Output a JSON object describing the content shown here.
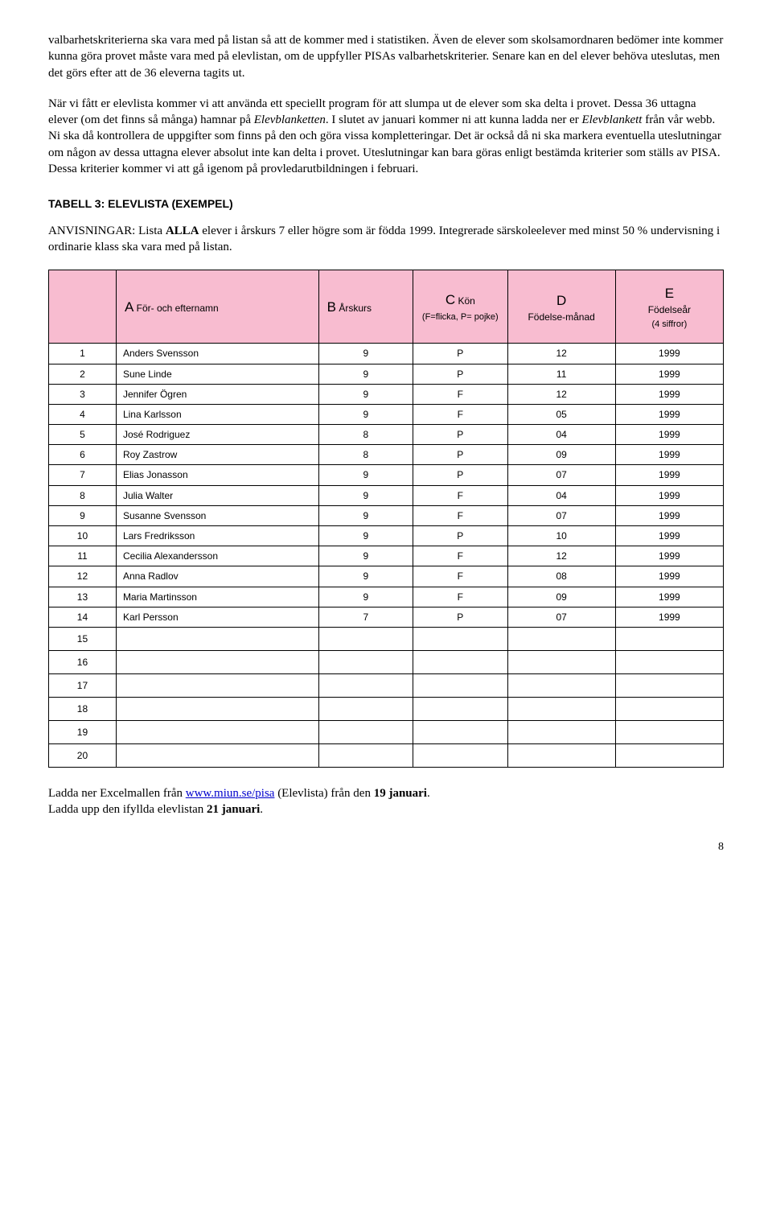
{
  "para1": "valbarhetskriterierna ska vara med på listan så att de kommer med i statistiken. Även de elever som skolsamordnaren bedömer inte kommer kunna göra provet måste vara med på elevlistan, om de uppfyller PISAs valbarhetskriterier. Senare kan en del elever behöva uteslutas, men det görs efter att de 36 eleverna tagits ut.",
  "para2_a": "När vi fått er elevlista kommer vi att använda ett speciellt program för att slumpa ut de elever som ska delta i provet. Dessa 36 uttagna elever (om det finns så många) hamnar på ",
  "para2_i1": "Elevblanketten",
  "para2_b": ". I slutet av januari kommer ni att kunna ladda ner er ",
  "para2_i2": "Elevblankett",
  "para2_c": " från vår webb. Ni ska då kontrollera de uppgifter som finns på den och göra vissa kompletteringar. Det är också då ni ska markera eventuella uteslutningar om någon av dessa uttagna elever absolut inte kan delta i provet. Uteslutningar kan bara göras enligt bestämda kriterier som ställs av PISA. Dessa kriterier kommer vi att gå igenom på provledarutbildningen i februari.",
  "heading": "TABELL 3: ELEVLISTA (EXEMPEL)",
  "instr_prefix": "ANVISNINGAR: Lista ",
  "instr_bold": "ALLA",
  "instr_suffix": " elever i årskurs 7 eller högre som är födda 1999. Integrerade särskoleelever med minst 50 % undervisning i ordinarie klass ska vara med på listan.",
  "columns": {
    "a_letter": "A",
    "a_label": "För- och efternamn",
    "b_letter": "B",
    "b_label": "Årskurs",
    "c_letter": "C",
    "c_label": "Kön",
    "c_sub": "(F=flicka, P= pojke)",
    "d_letter": "D",
    "d_label": "Födelse-månad",
    "e_letter": "E",
    "e_label": "Födelseår",
    "e_sub": "(4 siffror)"
  },
  "rows": [
    {
      "n": "1",
      "name": "Anders Svensson",
      "grade": "9",
      "sex": "P",
      "month": "12",
      "year": "1999"
    },
    {
      "n": "2",
      "name": "Sune Linde",
      "grade": "9",
      "sex": "P",
      "month": "11",
      "year": "1999"
    },
    {
      "n": "3",
      "name": "Jennifer Ögren",
      "grade": "9",
      "sex": "F",
      "month": "12",
      "year": "1999"
    },
    {
      "n": "4",
      "name": "Lina Karlsson",
      "grade": "9",
      "sex": "F",
      "month": "05",
      "year": "1999"
    },
    {
      "n": "5",
      "name": "José Rodriguez",
      "grade": "8",
      "sex": "P",
      "month": "04",
      "year": "1999"
    },
    {
      "n": "6",
      "name": "Roy Zastrow",
      "grade": "8",
      "sex": "P",
      "month": "09",
      "year": "1999"
    },
    {
      "n": "7",
      "name": "Elias Jonasson",
      "grade": "9",
      "sex": "P",
      "month": "07",
      "year": "1999"
    },
    {
      "n": "8",
      "name": "Julia Walter",
      "grade": "9",
      "sex": "F",
      "month": "04",
      "year": "1999"
    },
    {
      "n": "9",
      "name": "Susanne Svensson",
      "grade": "9",
      "sex": "F",
      "month": "07",
      "year": "1999"
    },
    {
      "n": "10",
      "name": "Lars Fredriksson",
      "grade": "9",
      "sex": "P",
      "month": "10",
      "year": "1999"
    },
    {
      "n": "11",
      "name": "Cecilia Alexandersson",
      "grade": "9",
      "sex": "F",
      "month": "12",
      "year": "1999"
    },
    {
      "n": "12",
      "name": "Anna Radlov",
      "grade": "9",
      "sex": "F",
      "month": "08",
      "year": "1999"
    },
    {
      "n": "13",
      "name": "Maria Martinsson",
      "grade": "9",
      "sex": "F",
      "month": "09",
      "year": "1999"
    },
    {
      "n": "14",
      "name": "Karl Persson",
      "grade": "7",
      "sex": "P",
      "month": "07",
      "year": "1999"
    }
  ],
  "empty_rows": [
    "15",
    "16",
    "17",
    "18",
    "19",
    "20"
  ],
  "footer_line1_a": "Ladda ner Excelmallen från ",
  "footer_link": "www.miun.se/pisa",
  "footer_line1_b": " (Elevlista) från den ",
  "footer_line1_bold": "19 januari",
  "footer_line1_c": ".",
  "footer_line2_a": "Ladda upp den ifyllda elevlistan ",
  "footer_line2_bold": "21 januari",
  "footer_line2_b": ".",
  "page_number": "8"
}
